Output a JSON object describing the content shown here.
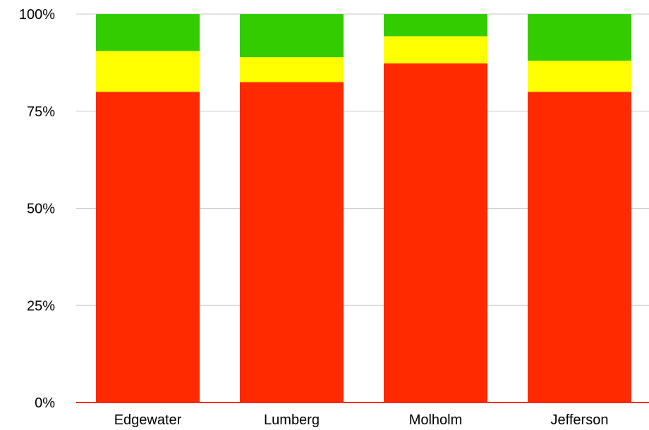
{
  "chart_data": {
    "type": "bar",
    "stacked": true,
    "percent_stacked": true,
    "title": "",
    "xlabel": "",
    "ylabel": "",
    "categories": [
      "Edgewater",
      "Lumberg",
      "Molholm",
      "Jefferson"
    ],
    "series": [
      {
        "color": "#ff2a00",
        "values": [
          80,
          82.5,
          87.3,
          80
        ]
      },
      {
        "color": "#ffff00",
        "values": [
          10.5,
          6.4,
          7.0,
          8.0
        ]
      },
      {
        "color": "#33cc00",
        "values": [
          9.5,
          11.1,
          5.7,
          12.0
        ]
      }
    ],
    "ylim": [
      0,
      100
    ],
    "y_ticks": [
      0,
      25,
      50,
      75,
      100
    ],
    "y_tick_labels": [
      "0%",
      "25%",
      "50%",
      "75%",
      "100%"
    ],
    "grid": true,
    "legend": "none",
    "colors": {
      "grid": "#c8c8c8",
      "baseline": "#ff2a00",
      "text": "#000000"
    }
  }
}
